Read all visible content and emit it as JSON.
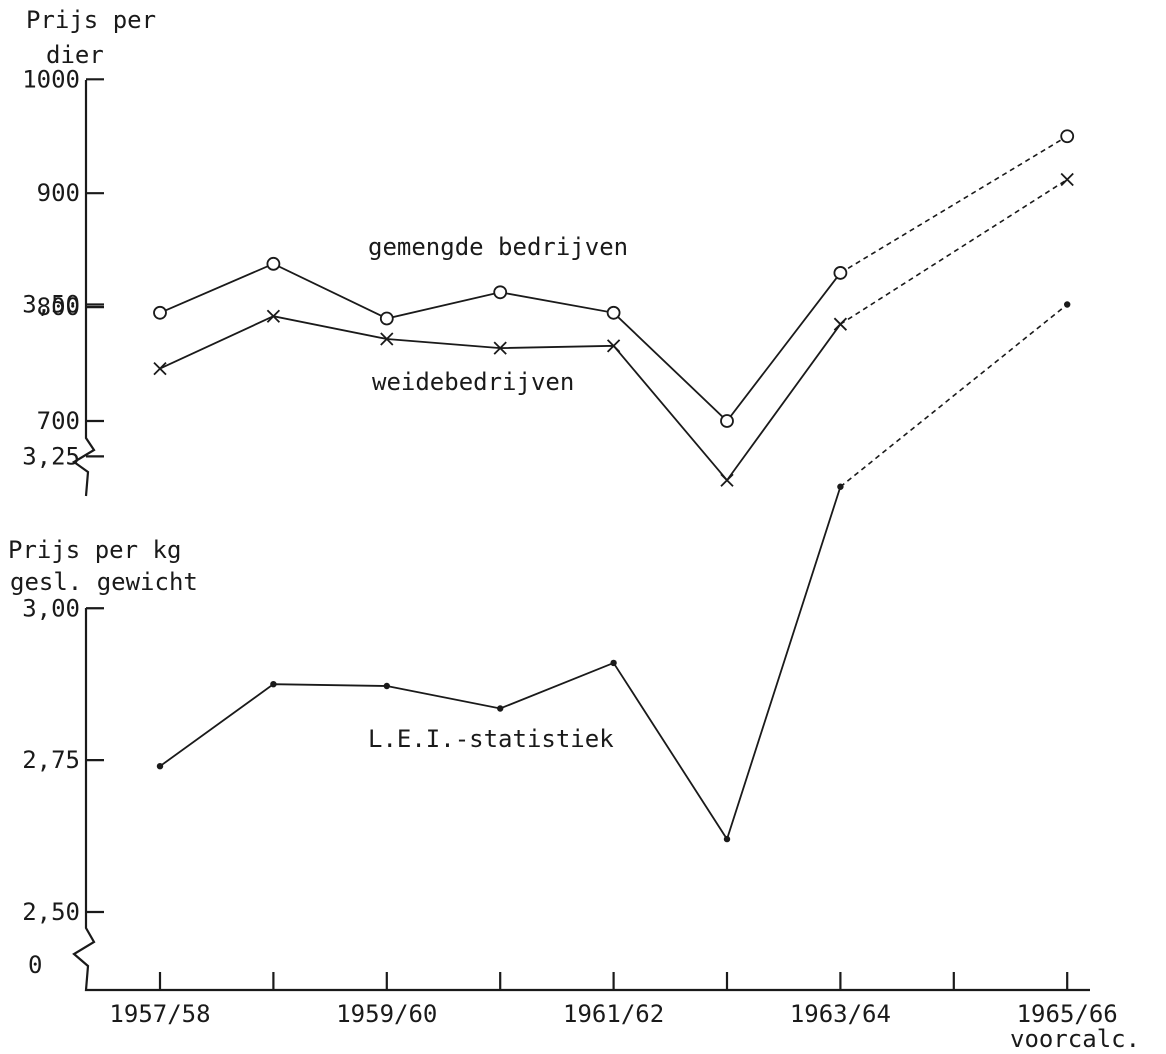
{
  "chart_data": [
    {
      "type": "line",
      "ylabel_line1": "Prijs per",
      "ylabel_line2": "dier",
      "yticks": [
        700,
        800,
        900,
        1000
      ],
      "ytick_labels": [
        "700",
        "800",
        "900",
        "1000"
      ],
      "ylim": [
        640,
        1000
      ],
      "axis_break": true,
      "x": [
        0,
        1,
        2,
        3,
        4,
        5,
        6,
        8
      ],
      "series": [
        {
          "name": "gemengde bedrijven",
          "marker": "circle",
          "values": [
            795,
            838,
            790,
            813,
            795,
            700,
            830,
            950
          ],
          "solid_until_index": 6
        },
        {
          "name": "weidebedrijven",
          "marker": "cross",
          "values": [
            746,
            792,
            772,
            764,
            766,
            648,
            785,
            912
          ],
          "solid_until_index": 6
        }
      ]
    },
    {
      "type": "line",
      "ylabel_line1": "Prijs per kg",
      "ylabel_line2": "gesl. gewicht",
      "yticks": [
        2.5,
        2.75,
        3.0,
        3.25,
        3.5
      ],
      "ytick_labels": [
        "2,50",
        "2,75",
        "3,00",
        "3,25",
        "3,50"
      ],
      "zero_label": "0",
      "ylim": [
        2.5,
        3.5
      ],
      "axis_break": true,
      "x": [
        0,
        1,
        2,
        3,
        4,
        5,
        6,
        8
      ],
      "series": [
        {
          "name": "L.E.I.-statistiek",
          "marker": "dot",
          "values": [
            2.74,
            2.875,
            2.872,
            2.835,
            2.91,
            2.62,
            3.2,
            3.5
          ],
          "solid_until_index": 6
        }
      ]
    }
  ],
  "x_axis": {
    "tick_positions": [
      0,
      1,
      2,
      3,
      4,
      5,
      6,
      7,
      8
    ],
    "labels": [
      {
        "pos": 0,
        "text": "1957/58"
      },
      {
        "pos": 2,
        "text": "1959/60"
      },
      {
        "pos": 4,
        "text": "1961/62"
      },
      {
        "pos": 6,
        "text": "1963/64"
      },
      {
        "pos": 8,
        "text": "1965/66"
      }
    ],
    "note": "voorcalc."
  }
}
